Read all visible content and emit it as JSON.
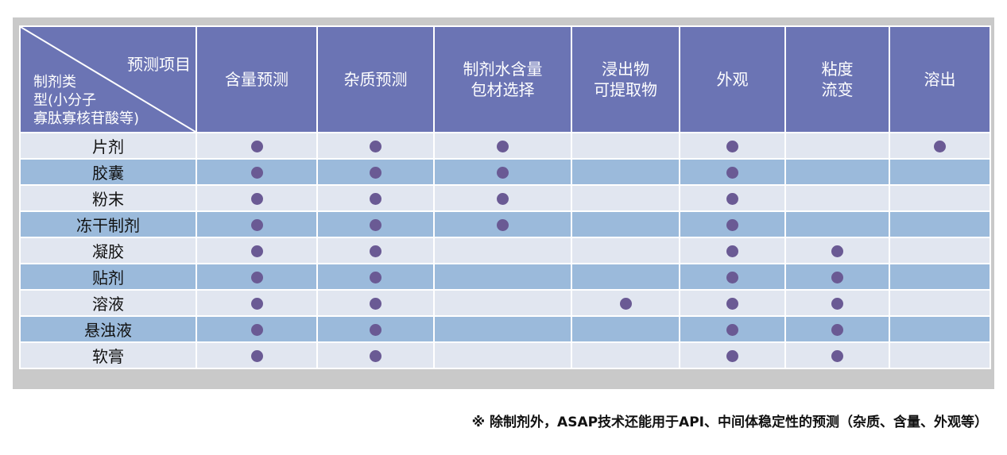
{
  "table": {
    "corner": {
      "top_label": "预测项目",
      "left_label_lines": [
        "制剂类",
        "型(小分子",
        "寡肽寡核苷酸等)"
      ]
    },
    "columns": [
      [
        "含量预测"
      ],
      [
        "杂质预测"
      ],
      [
        "制剂水含量",
        "包材选择"
      ],
      [
        "浸出物",
        "可提取物"
      ],
      [
        "外观"
      ],
      [
        "粘度",
        "流变"
      ],
      [
        "溶出"
      ]
    ],
    "rows": [
      {
        "name": "片剂",
        "marks": [
          true,
          true,
          true,
          false,
          true,
          false,
          true
        ]
      },
      {
        "name": "胶囊",
        "marks": [
          true,
          true,
          true,
          false,
          true,
          false,
          false
        ]
      },
      {
        "name": "粉末",
        "marks": [
          true,
          true,
          true,
          false,
          true,
          false,
          false
        ]
      },
      {
        "name": "冻干制剂",
        "marks": [
          true,
          true,
          true,
          false,
          true,
          false,
          false
        ]
      },
      {
        "name": "凝胶",
        "marks": [
          true,
          true,
          false,
          false,
          true,
          true,
          false
        ]
      },
      {
        "name": "贴剂",
        "marks": [
          true,
          true,
          false,
          false,
          true,
          true,
          false
        ]
      },
      {
        "name": "溶液",
        "marks": [
          true,
          true,
          false,
          true,
          true,
          true,
          false
        ]
      },
      {
        "name": "悬浊液",
        "marks": [
          true,
          true,
          false,
          false,
          true,
          true,
          false
        ]
      },
      {
        "name": "软膏",
        "marks": [
          true,
          true,
          false,
          false,
          true,
          true,
          false
        ]
      }
    ],
    "colors": {
      "header_bg": "#6b74b4",
      "row_light": "#e1e6f0",
      "row_dark": "#9bbadb",
      "dot": "#6a5a94"
    }
  },
  "footnote": "※ 除制剂外，ASAP技术还能用于API、中间体稳定性的预测（杂质、含量、外观等）"
}
